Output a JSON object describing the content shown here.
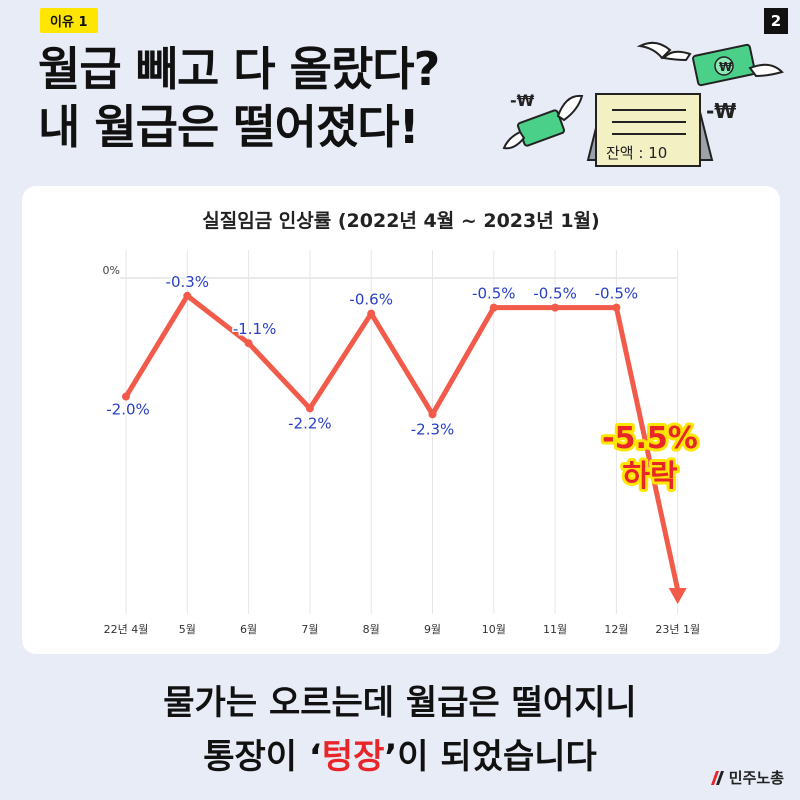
{
  "tag": "이유 1",
  "page_number": "2",
  "headline": {
    "line1": "월급 빼고 다 올랐다?",
    "line2": "내 월급은 떨어졌다!"
  },
  "illustration": {
    "balance_text": "잔액 : 10",
    "minus_won_left": "-₩",
    "minus_won_right": "-₩",
    "bill_symbol": "₩"
  },
  "chart_data": {
    "type": "line",
    "title": "실질임금 인상률 (2022년 4월 ~ 2023년 1월)",
    "categories": [
      "22년 4월",
      "5월",
      "6월",
      "7월",
      "8월",
      "9월",
      "10월",
      "11월",
      "12월",
      "23년 1월"
    ],
    "values": [
      -2.0,
      -0.3,
      -1.1,
      -2.2,
      -0.6,
      -2.3,
      -0.5,
      -0.5,
      -0.5,
      -5.5
    ],
    "data_labels": [
      "-2.0%",
      "-0.3%",
      "-1.1%",
      "-2.2%",
      "-0.6%",
      "-2.3%",
      "-0.5%",
      "-0.5%",
      "-0.5%",
      ""
    ],
    "y_tick_label": "0%",
    "ylim": [
      -5.5,
      0
    ],
    "line_color": "#f25a4a",
    "label_color": "#2840c8",
    "annotation": {
      "value": "-5.5%",
      "text": "하락",
      "color": "#e8262a",
      "glow": "#ffe600"
    }
  },
  "caption": {
    "line1": "물가는 오르는데 월급은 떨어지니",
    "line2_prefix": "통장이 ‘",
    "line2_highlight": "텅장",
    "line2_suffix": "’이 되었습니다"
  },
  "logo": {
    "text": "민주노총"
  },
  "colors": {
    "background": "#e8ecf7",
    "tag": "#ffe600",
    "accent": "#e8262a"
  }
}
